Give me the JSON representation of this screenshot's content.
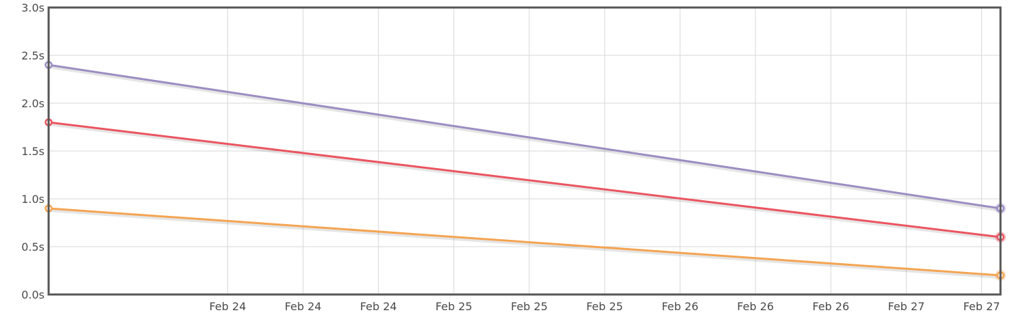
{
  "chart_data": {
    "type": "line",
    "x_domain": [
      "2024-02-23T03:00:00",
      "2024-02-27T08:00:00"
    ],
    "x_ticks": [
      {
        "label": "Feb 24",
        "t": "2024-02-23T22:00:00"
      },
      {
        "label": "Feb 24",
        "t": "2024-02-24T06:00:00"
      },
      {
        "label": "Feb 24",
        "t": "2024-02-24T14:00:00"
      },
      {
        "label": "Feb 25",
        "t": "2024-02-24T22:00:00"
      },
      {
        "label": "Feb 25",
        "t": "2024-02-25T06:00:00"
      },
      {
        "label": "Feb 25",
        "t": "2024-02-25T14:00:00"
      },
      {
        "label": "Feb 26",
        "t": "2024-02-25T22:00:00"
      },
      {
        "label": "Feb 26",
        "t": "2024-02-26T06:00:00"
      },
      {
        "label": "Feb 26",
        "t": "2024-02-26T14:00:00"
      },
      {
        "label": "Feb 27",
        "t": "2024-02-26T22:00:00"
      },
      {
        "label": "Feb 27",
        "t": "2024-02-27T06:00:00"
      }
    ],
    "y_ticks": [
      {
        "label": "0.0s",
        "value": 0
      },
      {
        "label": "0.5s",
        "value": 0.5
      },
      {
        "label": "1.0s",
        "value": 1
      },
      {
        "label": "1.5s",
        "value": 1.5
      },
      {
        "label": "2.0s",
        "value": 2
      },
      {
        "label": "2.5s",
        "value": 2.5
      },
      {
        "label": "3.0s",
        "value": 3
      }
    ],
    "ylim": [
      0,
      3
    ],
    "grid": true,
    "series": [
      {
        "color": "#9b8dc2",
        "points": [
          {
            "x": "2024-02-23T03:00:00",
            "y": 2.4
          },
          {
            "x": "2024-02-27T08:00:00",
            "y": 0.9
          }
        ]
      },
      {
        "color": "#eb5460",
        "points": [
          {
            "x": "2024-02-23T03:00:00",
            "y": 1.8
          },
          {
            "x": "2024-02-27T08:00:00",
            "y": 0.6
          }
        ]
      },
      {
        "color": "#f5a452",
        "points": [
          {
            "x": "2024-02-23T03:00:00",
            "y": 0.9
          },
          {
            "x": "2024-02-27T08:00:00",
            "y": 0.2
          }
        ]
      }
    ]
  }
}
